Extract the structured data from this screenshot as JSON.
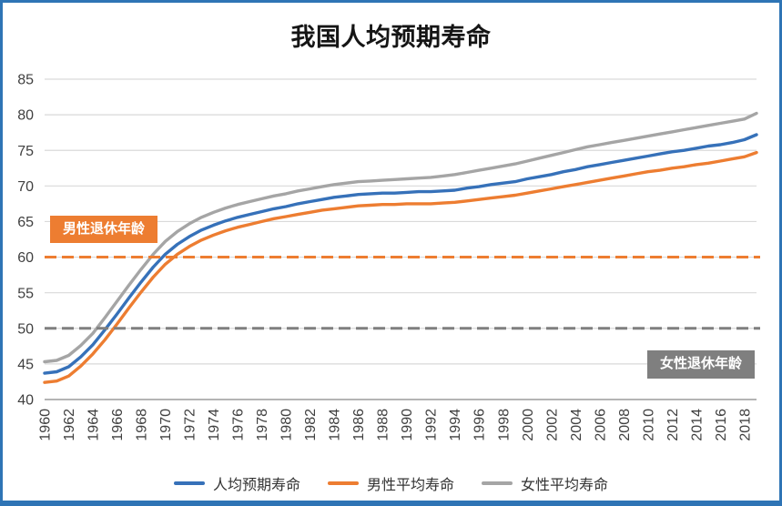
{
  "colors": {
    "panel_border": "#2E74B5",
    "grid": "#D9D9D9",
    "axis": "#9B9B9B",
    "tick_text": "#404040"
  },
  "chart_data": {
    "type": "line",
    "title": "我国人均预期寿命",
    "xlabel": "",
    "ylabel": "",
    "x_start": 1960,
    "x_end": 2019,
    "x_tick_step": 2,
    "x_tick_labels": [
      "1960",
      "1962",
      "1964",
      "1966",
      "1968",
      "1970",
      "1972",
      "1974",
      "1976",
      "1978",
      "1980",
      "1982",
      "1984",
      "1986",
      "1988",
      "1990",
      "1992",
      "1994",
      "1996",
      "1998",
      "2000",
      "2002",
      "2004",
      "2006",
      "2008",
      "2010",
      "2012",
      "2014",
      "2016",
      "2018"
    ],
    "ylim": [
      40,
      85
    ],
    "y_tick_step": 5,
    "grid": true,
    "legend_position": "bottom",
    "series": [
      {
        "name": "人均预期寿命",
        "color": "#3671B9",
        "values": [
          43.7,
          43.9,
          44.6,
          46.0,
          47.7,
          49.8,
          52.0,
          54.3,
          56.5,
          58.6,
          60.4,
          61.8,
          62.9,
          63.8,
          64.5,
          65.1,
          65.6,
          66.0,
          66.4,
          66.8,
          67.1,
          67.5,
          67.8,
          68.1,
          68.4,
          68.6,
          68.8,
          68.9,
          69.0,
          69.0,
          69.1,
          69.2,
          69.2,
          69.3,
          69.4,
          69.7,
          69.9,
          70.2,
          70.4,
          70.6,
          71.0,
          71.3,
          71.6,
          72.0,
          72.3,
          72.7,
          73.0,
          73.3,
          73.6,
          73.9,
          74.2,
          74.5,
          74.8,
          75.0,
          75.3,
          75.6,
          75.8,
          76.1,
          76.5,
          77.2
        ]
      },
      {
        "name": "男性平均寿命",
        "color": "#ED7D31",
        "values": [
          42.4,
          42.6,
          43.3,
          44.7,
          46.4,
          48.4,
          50.6,
          52.9,
          55.1,
          57.2,
          59.0,
          60.4,
          61.5,
          62.4,
          63.1,
          63.7,
          64.2,
          64.6,
          65.0,
          65.4,
          65.7,
          66.0,
          66.3,
          66.6,
          66.8,
          67.0,
          67.2,
          67.3,
          67.4,
          67.4,
          67.5,
          67.5,
          67.5,
          67.6,
          67.7,
          67.9,
          68.1,
          68.3,
          68.5,
          68.7,
          69.0,
          69.3,
          69.6,
          69.9,
          70.2,
          70.5,
          70.8,
          71.1,
          71.4,
          71.7,
          72.0,
          72.2,
          72.5,
          72.7,
          73.0,
          73.2,
          73.5,
          73.8,
          74.1,
          74.7
        ]
      },
      {
        "name": "女性平均寿命",
        "color": "#A5A5A5",
        "values": [
          45.3,
          45.5,
          46.2,
          47.6,
          49.3,
          51.5,
          53.8,
          56.1,
          58.3,
          60.4,
          62.2,
          63.6,
          64.7,
          65.6,
          66.3,
          66.9,
          67.4,
          67.8,
          68.2,
          68.6,
          68.9,
          69.3,
          69.6,
          69.9,
          70.2,
          70.4,
          70.6,
          70.7,
          70.8,
          70.9,
          71.0,
          71.1,
          71.2,
          71.4,
          71.6,
          71.9,
          72.2,
          72.5,
          72.8,
          73.1,
          73.5,
          73.9,
          74.3,
          74.7,
          75.1,
          75.5,
          75.8,
          76.1,
          76.4,
          76.7,
          77.0,
          77.3,
          77.6,
          77.9,
          78.2,
          78.5,
          78.8,
          79.1,
          79.4,
          80.2
        ]
      }
    ],
    "reference_lines": [
      {
        "value": 60,
        "label": "男性退休年龄",
        "color": "#ED7D31",
        "style": "dashed",
        "label_side": "left"
      },
      {
        "value": 50,
        "label": "女性退休年龄",
        "color": "#7F7F7F",
        "style": "dashed",
        "label_side": "right"
      }
    ]
  }
}
